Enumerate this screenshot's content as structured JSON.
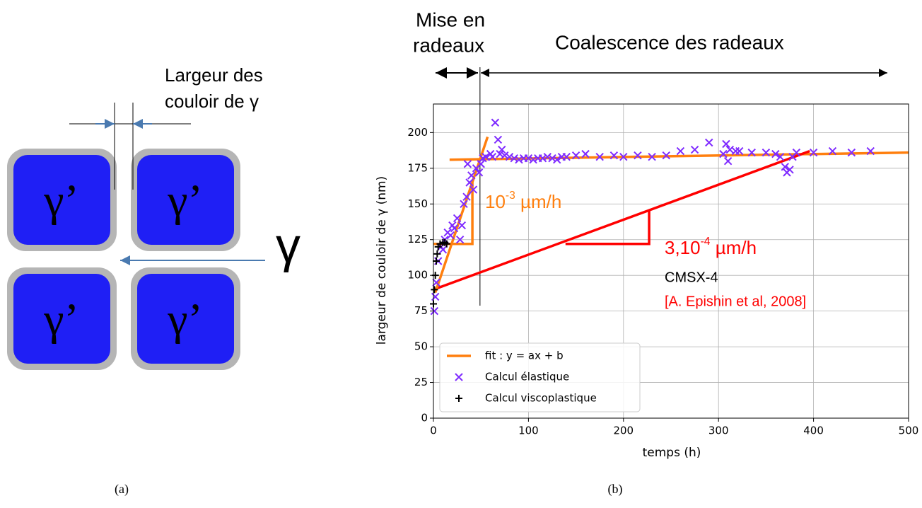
{
  "diagram": {
    "phase_labels": [
      "γ’",
      "γ’",
      "γ’",
      "γ’"
    ],
    "width_label": [
      "Largeur des",
      "couloir de γ"
    ],
    "matrix_label": "γ",
    "caption": "(a)"
  },
  "chart_data": {
    "type": "scatter",
    "caption": "(b)",
    "x_label": "temps (h)",
    "y_label": "largeur de couloir de γ (nm)",
    "xlim": [
      0,
      500
    ],
    "ylim": [
      0,
      220
    ],
    "xticks": [
      0,
      100,
      200,
      300,
      400,
      500
    ],
    "yticks": [
      0,
      25,
      50,
      75,
      100,
      125,
      150,
      175,
      200
    ],
    "grid": true,
    "legend": "lower left",
    "series": [
      {
        "name": "fit : y = ax + b",
        "color": "#ff7f0e",
        "marker": "line",
        "x": [
          2,
          57
        ],
        "values": [
          88,
          197
        ]
      },
      {
        "name": "Calcul élastique",
        "color": "#7f2bff",
        "marker": "x",
        "x": [
          1,
          2,
          3,
          5,
          8,
          10,
          12,
          15,
          18,
          20,
          22,
          25,
          28,
          30,
          32,
          35,
          36,
          38,
          40,
          42,
          45,
          48,
          50,
          52,
          55,
          60,
          62,
          65,
          68,
          70,
          72,
          75,
          80,
          85,
          90,
          95,
          100,
          105,
          110,
          115,
          120,
          125,
          130,
          135,
          140,
          150,
          160,
          175,
          190,
          200,
          215,
          230,
          245,
          260,
          275,
          290,
          305,
          308,
          310,
          312,
          318,
          322,
          335,
          350,
          360,
          365,
          370,
          372,
          375,
          378,
          382,
          400,
          420,
          440,
          460
        ],
        "values": [
          75,
          85,
          95,
          110,
          120,
          118,
          125,
          130,
          128,
          135,
          133,
          140,
          125,
          135,
          150,
          155,
          178,
          165,
          170,
          160,
          175,
          172,
          178,
          182,
          183,
          185,
          183,
          207,
          195,
          185,
          188,
          184,
          183,
          182,
          181,
          182,
          182,
          181,
          182,
          182,
          183,
          182,
          181,
          183,
          183,
          184,
          185,
          183,
          184,
          183,
          184,
          183,
          184,
          187,
          188,
          193,
          185,
          192,
          180,
          188,
          187,
          187,
          186,
          186,
          185,
          183,
          176,
          172,
          174,
          183,
          186,
          186,
          187,
          186,
          187
        ]
      },
      {
        "name": "Calcul viscoplastique",
        "color": "#000000",
        "marker": "+",
        "x": [
          0,
          1,
          2,
          3,
          4,
          5,
          7,
          10,
          12,
          14
        ],
        "values": [
          80,
          90,
          100,
          110,
          115,
          120,
          122,
          123,
          123,
          122
        ]
      }
    ],
    "lines": [
      {
        "color": "#ff7f0e",
        "x": [
          17,
          500
        ],
        "values": [
          181,
          186
        ]
      },
      {
        "color": "#ff7f0e",
        "x": [
          0,
          41,
          41
        ],
        "values": [
          122,
          122,
          165
        ]
      },
      {
        "color": "#ff0000",
        "x": [
          0,
          396
        ],
        "values": [
          90,
          187
        ]
      },
      {
        "color": "#ff0000",
        "x": [
          139,
          227,
          227
        ],
        "values": [
          122,
          122,
          145
        ]
      }
    ],
    "phase_boundary_x": 49,
    "phases": [
      "Mise en",
      "radeaux",
      "Coalescence des radeaux"
    ],
    "annotations": [
      {
        "base": "10",
        "sup": "-3",
        "rest": " µm/h",
        "color": "#ff7f0e"
      },
      {
        "base": "3,10",
        "sup": "-4",
        "rest": " µm/h",
        "color": "#ff0000"
      },
      {
        "text": "CMSX-4",
        "color": "#000000"
      },
      {
        "text": "[A. Epishin et al, 2008]",
        "color": "#ff0000"
      }
    ]
  }
}
